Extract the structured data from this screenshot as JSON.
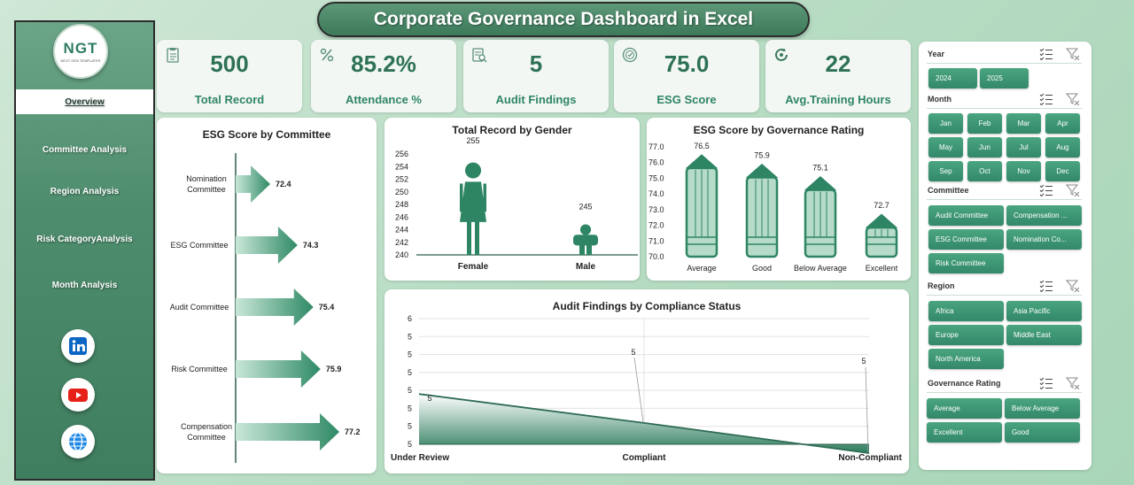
{
  "title": "Corporate Governance Dashboard in Excel",
  "logo": {
    "text": "NGT",
    "subtext": "NEXT GEN TEMPLATES"
  },
  "nav": [
    {
      "label": "Overview",
      "active": true
    },
    {
      "label": "Committee Analysis",
      "active": false
    },
    {
      "label": "Region Analysis",
      "active": false
    },
    {
      "label": "Risk CategoryAnalysis",
      "active": false
    },
    {
      "label": "Month Analysis",
      "active": false
    }
  ],
  "social": [
    {
      "icon": "linkedin-icon",
      "color": "#0a66c2"
    },
    {
      "icon": "youtube-icon",
      "color": "#e62117"
    },
    {
      "icon": "globe-icon",
      "color": "#1e88e5"
    }
  ],
  "kpis": [
    {
      "value": "500",
      "label": "Total Record",
      "icon": "clipboard-icon"
    },
    {
      "value": "85.2%",
      "label": "Attendance %",
      "icon": "percent-icon"
    },
    {
      "value": "5",
      "label": "Audit Findings",
      "icon": "audit-document-icon"
    },
    {
      "value": "75.0",
      "label": "ESG Score",
      "icon": "esg-badge-icon"
    },
    {
      "value": "22",
      "label": "Avg.Training Hours",
      "icon": "training-cycle-icon"
    }
  ],
  "chart_data": [
    {
      "type": "bar",
      "title": "ESG Score by Committee",
      "categories": [
        "Nomination Committee",
        "ESG Committee",
        "Audit Committee",
        "Risk Committee",
        "Compensation Committee"
      ],
      "values": [
        72.4,
        74.3,
        75.4,
        75.9,
        77.2
      ],
      "data_labels": [
        "72.4",
        "74.3",
        "75.4",
        "75.9",
        "77.2"
      ],
      "orientation": "horizontal",
      "mark": "arrow"
    },
    {
      "type": "bar",
      "title": "Total Record by Gender",
      "categories": [
        "Female",
        "Male"
      ],
      "values": [
        255,
        245
      ],
      "data_labels": [
        "255",
        "245"
      ],
      "ylim": [
        240,
        256
      ],
      "yticks": [
        "256",
        "254",
        "252",
        "250",
        "248",
        "246",
        "244",
        "242",
        "240"
      ],
      "mark": "person-pictogram"
    },
    {
      "type": "bar",
      "title": "ESG Score by Governance Rating",
      "categories": [
        "Average",
        "Good",
        "Below Average",
        "Excellent"
      ],
      "values": [
        76.5,
        75.9,
        75.1,
        72.7
      ],
      "data_labels": [
        "76.5",
        "75.9",
        "75.1",
        "72.7"
      ],
      "ylim": [
        70,
        77
      ],
      "yticks": [
        "77.0",
        "76.0",
        "75.0",
        "74.0",
        "73.0",
        "72.0",
        "71.0",
        "70.0"
      ],
      "mark": "pencil"
    },
    {
      "type": "area",
      "title": "Audit Findings by Compliance Status",
      "categories": [
        "Under Review",
        "Compliant",
        "Non-Compliant"
      ],
      "values": [
        5.4,
        5.17,
        4.93
      ],
      "data_labels": [
        "5",
        "5",
        "5"
      ],
      "ylim": [
        5,
        6
      ],
      "yticks": [
        "6",
        "5",
        "5",
        "5",
        "5",
        "5",
        "5",
        "5"
      ],
      "grid": true
    }
  ],
  "slicers": {
    "year": {
      "label": "Year",
      "items": [
        "2024",
        "2025"
      ]
    },
    "month": {
      "label": "Month",
      "items": [
        "Jan",
        "Feb",
        "Mar",
        "Apr",
        "May",
        "Jun",
        "Jul",
        "Aug",
        "Sep",
        "Oct",
        "Nov",
        "Dec"
      ]
    },
    "committee": {
      "label": "Committee",
      "items": [
        "Audit Committee",
        "Compensation ...",
        "ESG Committee",
        "Nomination Co...",
        "Risk Committee"
      ]
    },
    "region": {
      "label": "Region",
      "items": [
        "Africa",
        "Asia Pacific",
        "Europe",
        "Middle East",
        "North America"
      ]
    },
    "rating": {
      "label": "Governance Rating",
      "items": [
        "Average",
        "Below Average",
        "Excellent",
        "Good"
      ]
    }
  },
  "colors": {
    "accent": "#2e8563",
    "accent_dark": "#1e6a50",
    "chip": "#3a9272",
    "light_fill": "#b6dcc9"
  }
}
